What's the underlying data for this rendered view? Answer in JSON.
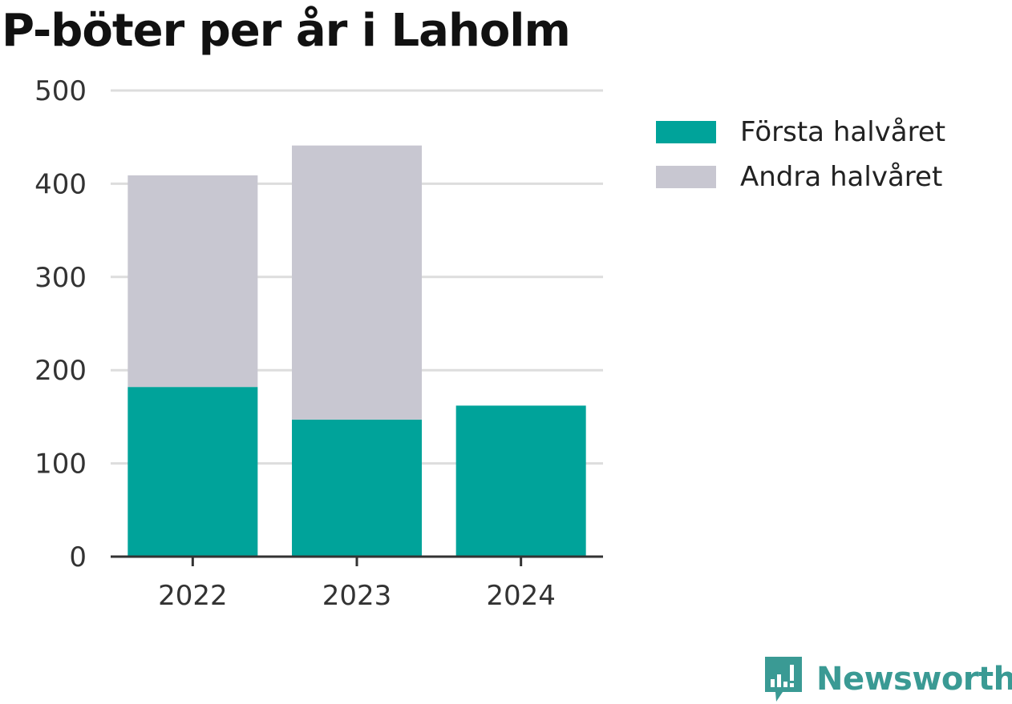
{
  "colors": {
    "forsta": "#00a39a",
    "andra": "#c8c7d1",
    "grid": "#dddddd",
    "axis": "#333333",
    "text": "#333333",
    "brand": "#3a9a94"
  },
  "chart_data": {
    "type": "bar",
    "stacked": true,
    "title": "P-böter per år i Laholm",
    "xlabel": "",
    "ylabel": "",
    "categories": [
      "2022",
      "2023",
      "2024"
    ],
    "series": [
      {
        "name": "Första halvåret",
        "values": [
          182,
          147,
          162
        ]
      },
      {
        "name": "Andra halvåret",
        "values": [
          227,
          294,
          null
        ]
      }
    ],
    "ylim": [
      0,
      500
    ],
    "yticks": [
      0,
      100,
      200,
      300,
      400,
      500
    ],
    "grid": true,
    "legend_position": "top-right"
  },
  "branding": {
    "name": "Newsworthy",
    "logo_icon": "newsworthy-logo-icon"
  }
}
